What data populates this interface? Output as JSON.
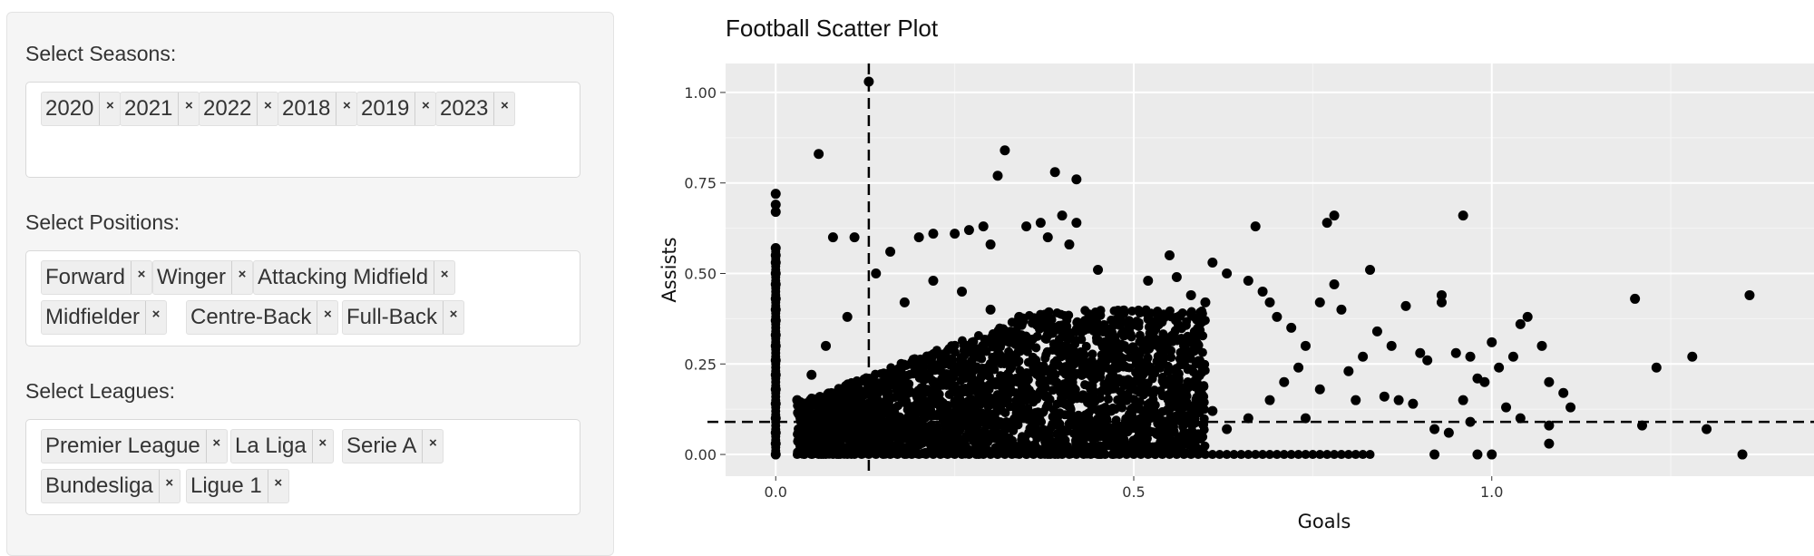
{
  "sidebar": {
    "filters": [
      {
        "label": "Select Seasons:",
        "tags": [
          "2020",
          "2021",
          "2022",
          "2018",
          "2019",
          "2023"
        ]
      },
      {
        "label": "Select Positions:",
        "tags": [
          "Forward",
          "Winger",
          "Attacking Midfield",
          "Midfielder",
          "Centre-Back",
          "Full-Back"
        ]
      },
      {
        "label": "Select Leagues:",
        "tags": [
          "Premier League",
          "La Liga",
          "Serie A",
          "Bundesliga",
          "Ligue 1"
        ]
      }
    ],
    "remove_glyph": "×"
  },
  "chart_data": {
    "type": "scatter",
    "title": "Football Scatter Plot",
    "xlabel": "Goals",
    "ylabel": "Assists",
    "xlim": [
      -0.07,
      1.45
    ],
    "ylim": [
      -0.06,
      1.08
    ],
    "x_ticks": [
      "0.0",
      "0.5",
      "1.0"
    ],
    "y_ticks": [
      "0.00",
      "0.25",
      "0.50",
      "0.75",
      "1.00"
    ],
    "grid": true,
    "reference_lines": {
      "vertical_x": 0.13,
      "horizontal_y": 0.09
    },
    "colors": {
      "background": "#ebebeb",
      "point": "#000000",
      "grid": "#ffffff"
    },
    "series": [
      {
        "points": [
          [
            0.13,
            1.03
          ],
          [
            0.06,
            0.83
          ],
          [
            0.32,
            0.84
          ],
          [
            0.31,
            0.77
          ],
          [
            0.39,
            0.78
          ],
          [
            0.42,
            0.76
          ],
          [
            0.0,
            0.72
          ],
          [
            0.0,
            0.69
          ],
          [
            0.0,
            0.67
          ],
          [
            0.0,
            0.57
          ],
          [
            0.0,
            0.55
          ],
          [
            0.0,
            0.53
          ],
          [
            0.0,
            0.5
          ],
          [
            0.0,
            0.47
          ],
          [
            0.0,
            0.43
          ],
          [
            0.0,
            0.4
          ],
          [
            0.0,
            0.37
          ],
          [
            0.0,
            0.33
          ],
          [
            0.0,
            0.3
          ],
          [
            0.0,
            0.26
          ],
          [
            0.0,
            0.22
          ],
          [
            0.0,
            0.18
          ],
          [
            0.0,
            0.14
          ],
          [
            0.0,
            0.1
          ],
          [
            0.0,
            0.06
          ],
          [
            0.0,
            0.03
          ],
          [
            0.0,
            0.0
          ],
          [
            0.08,
            0.6
          ],
          [
            0.11,
            0.6
          ],
          [
            0.16,
            0.56
          ],
          [
            0.2,
            0.6
          ],
          [
            0.22,
            0.61
          ],
          [
            0.25,
            0.61
          ],
          [
            0.27,
            0.62
          ],
          [
            0.29,
            0.63
          ],
          [
            0.3,
            0.58
          ],
          [
            0.35,
            0.63
          ],
          [
            0.37,
            0.64
          ],
          [
            0.38,
            0.6
          ],
          [
            0.4,
            0.66
          ],
          [
            0.41,
            0.58
          ],
          [
            0.42,
            0.64
          ],
          [
            0.45,
            0.51
          ],
          [
            0.52,
            0.48
          ],
          [
            0.55,
            0.55
          ],
          [
            0.56,
            0.49
          ],
          [
            0.58,
            0.44
          ],
          [
            0.6,
            0.42
          ],
          [
            0.61,
            0.53
          ],
          [
            0.63,
            0.5
          ],
          [
            0.66,
            0.48
          ],
          [
            0.67,
            0.63
          ],
          [
            0.68,
            0.45
          ],
          [
            0.69,
            0.42
          ],
          [
            0.7,
            0.38
          ],
          [
            0.72,
            0.35
          ],
          [
            0.74,
            0.3
          ],
          [
            0.76,
            0.42
          ],
          [
            0.77,
            0.64
          ],
          [
            0.78,
            0.66
          ],
          [
            0.78,
            0.47
          ],
          [
            0.79,
            0.4
          ],
          [
            0.83,
            0.51
          ],
          [
            0.84,
            0.34
          ],
          [
            0.86,
            0.3
          ],
          [
            0.88,
            0.41
          ],
          [
            0.9,
            0.28
          ],
          [
            0.91,
            0.26
          ],
          [
            0.93,
            0.44
          ],
          [
            0.93,
            0.42
          ],
          [
            0.95,
            0.28
          ],
          [
            0.96,
            0.66
          ],
          [
            0.96,
            0.15
          ],
          [
            0.97,
            0.27
          ],
          [
            0.98,
            0.21
          ],
          [
            0.99,
            0.2
          ],
          [
            1.0,
            0.31
          ],
          [
            1.01,
            0.24
          ],
          [
            1.02,
            0.13
          ],
          [
            1.03,
            0.27
          ],
          [
            1.04,
            0.36
          ],
          [
            1.05,
            0.38
          ],
          [
            1.07,
            0.3
          ],
          [
            1.08,
            0.2
          ],
          [
            1.08,
            0.03
          ],
          [
            1.1,
            0.17
          ],
          [
            1.11,
            0.13
          ],
          [
            1.2,
            0.43
          ],
          [
            1.21,
            0.08
          ],
          [
            1.23,
            0.24
          ],
          [
            1.28,
            0.27
          ],
          [
            1.3,
            0.07
          ],
          [
            1.35,
            0.0
          ],
          [
            1.36,
            0.44
          ],
          [
            0.74,
            0.1
          ],
          [
            0.76,
            0.18
          ],
          [
            0.81,
            0.15
          ],
          [
            0.85,
            0.16
          ],
          [
            0.87,
            0.15
          ],
          [
            0.89,
            0.14
          ],
          [
            0.92,
            0.07
          ],
          [
            0.94,
            0.06
          ],
          [
            0.97,
            0.09
          ],
          [
            1.0,
            0.0
          ],
          [
            1.04,
            0.1
          ],
          [
            0.92,
            0.0
          ],
          [
            0.98,
            0.0
          ],
          [
            1.08,
            0.08
          ],
          [
            0.8,
            0.23
          ],
          [
            0.82,
            0.27
          ],
          [
            0.73,
            0.24
          ],
          [
            0.71,
            0.2
          ],
          [
            0.69,
            0.15
          ],
          [
            0.66,
            0.1
          ],
          [
            0.63,
            0.07
          ],
          [
            0.61,
            0.12
          ],
          [
            0.58,
            0.09
          ],
          [
            0.55,
            0.15
          ],
          [
            0.52,
            0.13
          ],
          [
            0.5,
            0.2
          ],
          [
            0.48,
            0.25
          ],
          [
            0.46,
            0.3
          ],
          [
            0.44,
            0.36
          ],
          [
            0.42,
            0.28
          ],
          [
            0.38,
            0.33
          ],
          [
            0.34,
            0.38
          ],
          [
            0.3,
            0.4
          ],
          [
            0.26,
            0.45
          ],
          [
            0.22,
            0.48
          ],
          [
            0.18,
            0.42
          ],
          [
            0.14,
            0.5
          ],
          [
            0.1,
            0.38
          ],
          [
            0.07,
            0.3
          ],
          [
            0.05,
            0.22
          ],
          [
            0.03,
            0.15
          ]
        ],
        "dense_band": {
          "x_range": [
            0.03,
            0.6
          ],
          "y_range": [
            0.0,
            0.4
          ],
          "description_x_values": [
            0.03,
            0.07,
            0.12,
            0.17,
            0.22,
            0.27,
            0.32,
            0.37,
            0.42,
            0.47,
            0.52,
            0.57
          ],
          "assists_at_zero": [
            0.03,
            0.1,
            0.2,
            0.3,
            0.4,
            0.5,
            0.6,
            0.7,
            0.77,
            0.79,
            0.8,
            0.81,
            0.82,
            0.84
          ]
        }
      }
    ]
  }
}
